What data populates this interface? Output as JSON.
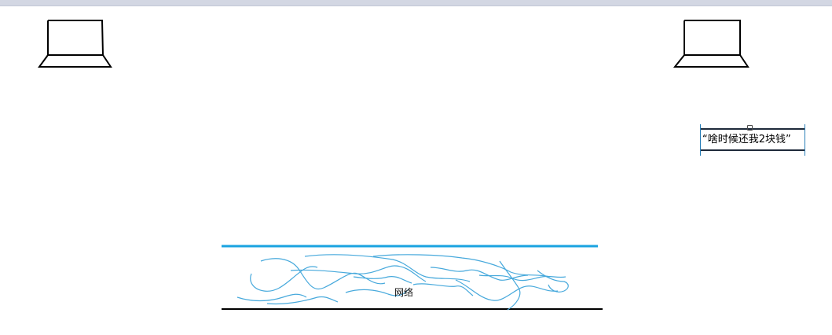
{
  "canvas": {
    "background": "#ffffff",
    "top_bar_color": "#d3d7e3"
  },
  "computers": [
    {
      "icon": "laptop-icon",
      "position": "left"
    },
    {
      "icon": "laptop-icon",
      "position": "right"
    }
  ],
  "message_box": {
    "text": "“啥时候还我2块钱”",
    "border_color": "#1f2a3a",
    "selection_color": "#2a7fb8"
  },
  "network": {
    "label": "网络",
    "top_line_color": "#1aa3e0",
    "bottom_line_color": "#000000",
    "scribble_color": "#47a9dc"
  }
}
